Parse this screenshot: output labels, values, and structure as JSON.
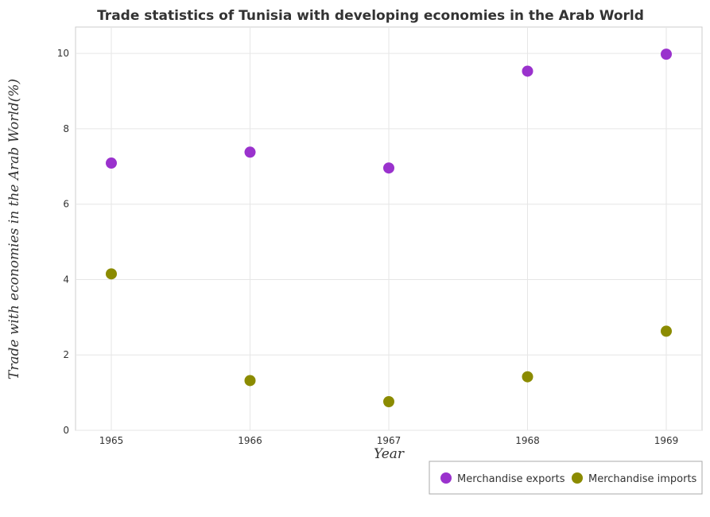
{
  "chart_data": {
    "type": "scatter",
    "title": "Trade statistics of Tunisia with developing economies in the Arab World",
    "xlabel": "Year",
    "ylabel": "Trade with economies in the Arab World(%)",
    "categories": [
      "1965",
      "1966",
      "1967",
      "1968",
      "1969"
    ],
    "yticks": [
      "0",
      "2",
      "4",
      "6",
      "8",
      "10"
    ],
    "ylim": [
      0,
      10.7
    ],
    "grid": true,
    "legend_position": "bottom-right",
    "series": [
      {
        "name": "Merchandise exports",
        "color": "#9a32cd",
        "values": [
          7.09,
          7.38,
          6.96,
          9.53,
          9.98
        ]
      },
      {
        "name": "Merchandise imports",
        "color": "#8b8b00",
        "values": [
          4.15,
          1.32,
          0.76,
          1.42,
          2.63
        ]
      }
    ]
  }
}
